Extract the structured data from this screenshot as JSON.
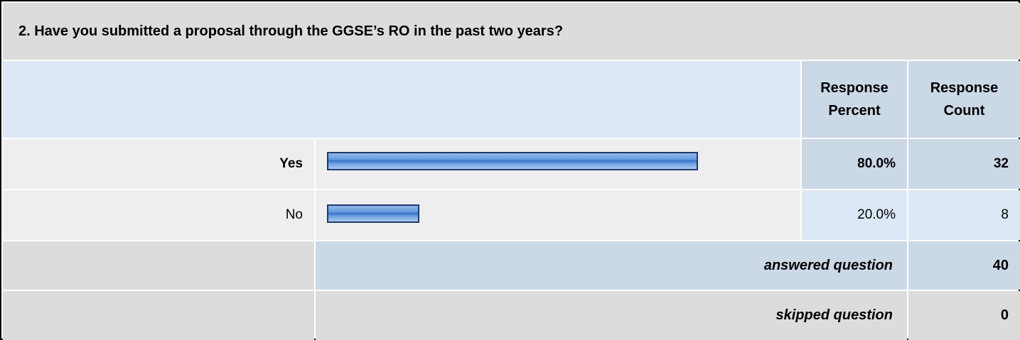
{
  "question": {
    "title": "2. Have you submitted a proposal through the GGSE’s RO in the past two years?"
  },
  "columns": {
    "percent_line1": "Response",
    "percent_line2": "Percent",
    "count_line1": "Response",
    "count_line2": "Count"
  },
  "rows": [
    {
      "label": "Yes",
      "percent": "80.0%",
      "count": "32",
      "share": 0.8
    },
    {
      "label": "No",
      "percent": "20.0%",
      "count": "8",
      "share": 0.2
    }
  ],
  "summary": {
    "answered_label": "answered question",
    "answered_value": "40",
    "skipped_label": "skipped question",
    "skipped_value": "0"
  },
  "colors": {
    "header_blue": "#cbd8e6",
    "light_blue": "#dce8f5",
    "gray": "#dcdcdc",
    "row_gray": "#eeeeee",
    "bar_border": "#1f3a6e"
  }
}
